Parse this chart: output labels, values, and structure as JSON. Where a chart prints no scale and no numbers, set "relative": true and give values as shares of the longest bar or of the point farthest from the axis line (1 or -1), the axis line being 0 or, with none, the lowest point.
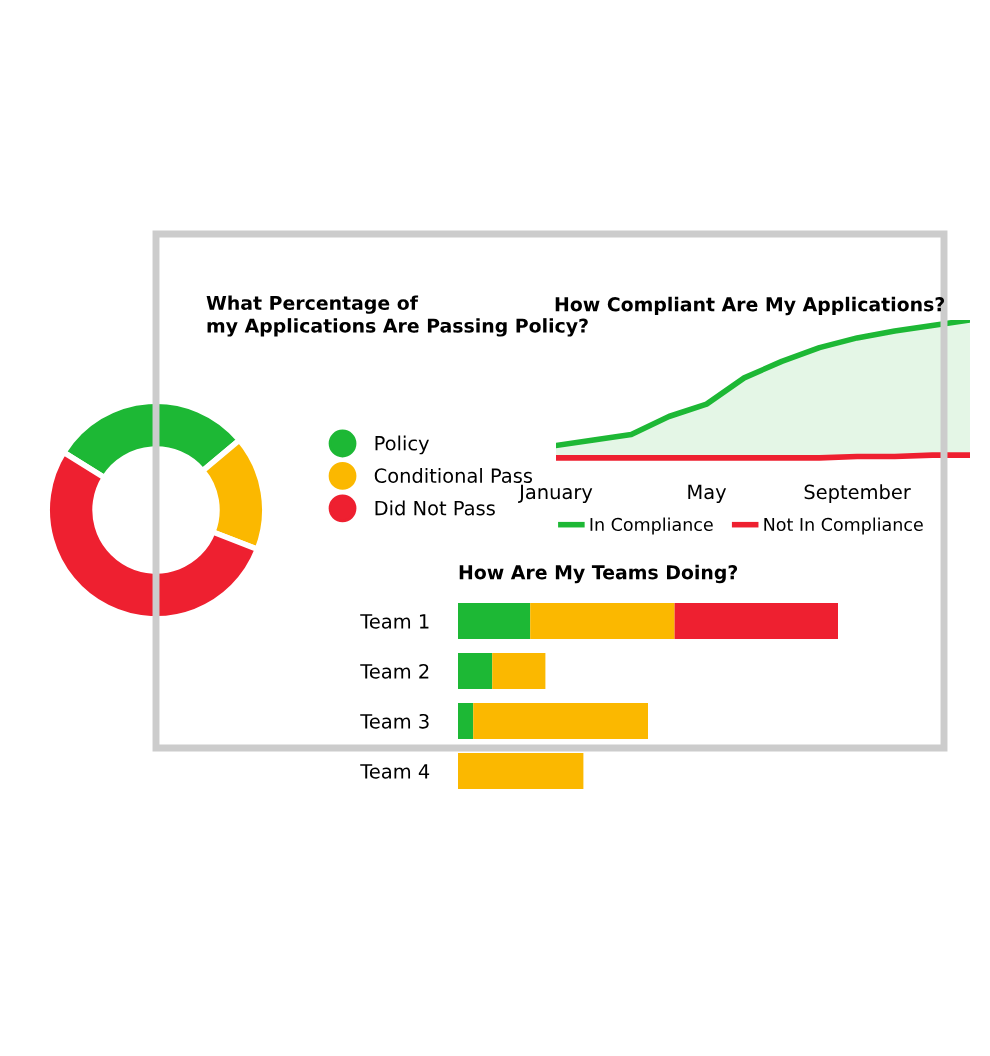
{
  "chart_data": [
    {
      "type": "donut",
      "title": "What Percentage of my Applications Are Passing Policy?",
      "categories": [
        "Policy",
        "Conditional Pass",
        "Did Not Pass"
      ],
      "values": [
        30,
        17,
        53
      ],
      "colors": [
        "#1db835",
        "#fbb800",
        "#ee2030"
      ],
      "legend": "right"
    },
    {
      "type": "line",
      "title": "How Compliant Are My Applications?",
      "relative": true,
      "categories": [
        "January",
        null,
        null,
        null,
        "May",
        null,
        null,
        null,
        "September",
        null,
        null,
        null
      ],
      "tick_labels": "x",
      "legend": "bottom",
      "series": [
        {
          "name": "In Compliance",
          "type": "area",
          "color": "#1db835",
          "values": [
            0.09,
            0.13,
            0.17,
            0.3,
            0.39,
            0.58,
            0.7,
            0.8,
            0.87,
            0.92,
            0.96,
            1.0
          ]
        },
        {
          "name": "Not In Compliance",
          "type": "line",
          "color": "#ee2030",
          "values": [
            0,
            0,
            0,
            0,
            0,
            0,
            0,
            0,
            0.01,
            0.01,
            0.02,
            0.02
          ]
        }
      ]
    },
    {
      "type": "bar",
      "title": "How Are My Teams Doing?",
      "orientation": "horizontal",
      "stacked": true,
      "relative": true,
      "categories": [
        "Team 1",
        "Team 2",
        "Team 3",
        "Team 4"
      ],
      "tick_labels": "y",
      "series": [
        {
          "color": "#1db835",
          "values": [
            0.19,
            0.09,
            0.04,
            0
          ]
        },
        {
          "color": "#fbb800",
          "values": [
            0.38,
            0.14,
            0.46,
            0.33
          ]
        },
        {
          "color": "#ee2030",
          "values": [
            0.43,
            0,
            0,
            0
          ]
        }
      ]
    }
  ]
}
